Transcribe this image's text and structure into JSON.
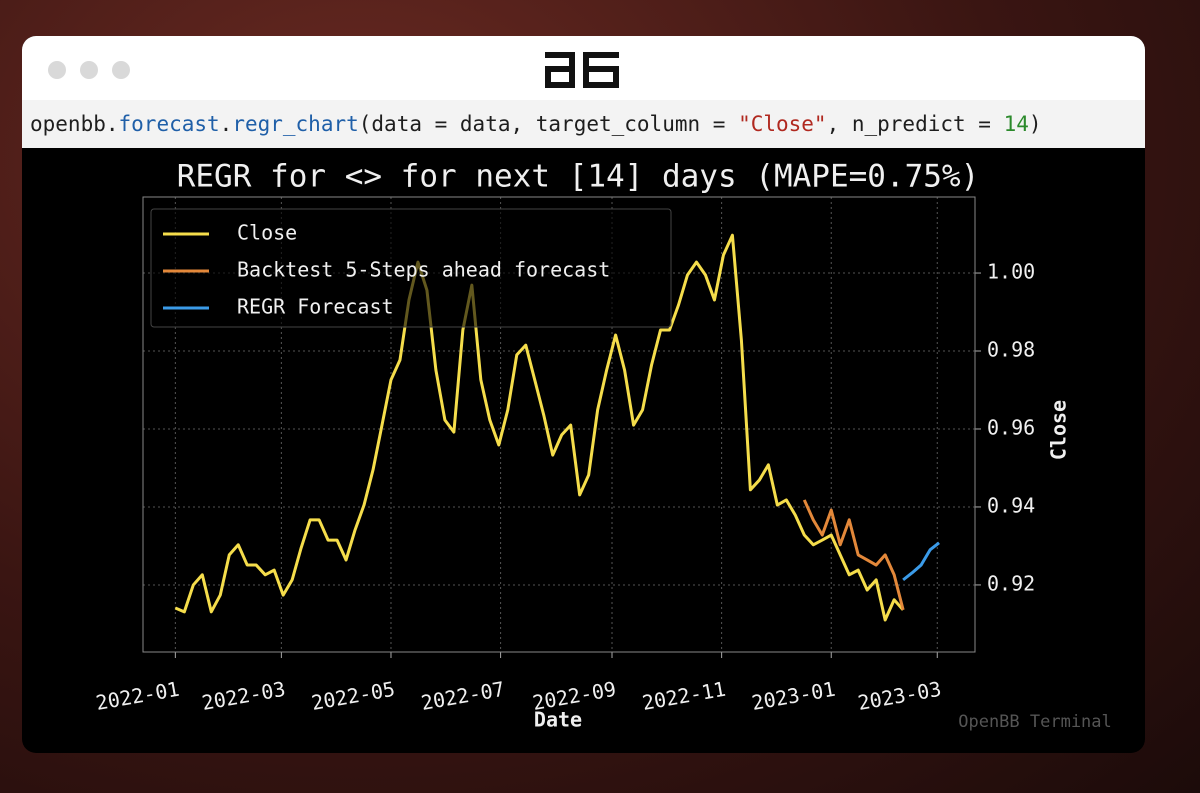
{
  "code": {
    "tokens": [
      {
        "text": "openbb.",
        "color": "#1e1e1e"
      },
      {
        "text": "forecast",
        "color": "#1f5fa8"
      },
      {
        "text": ".",
        "color": "#1e1e1e"
      },
      {
        "text": "regr_chart",
        "color": "#1f5fa8"
      },
      {
        "text": "(data = data, target_column = ",
        "color": "#1e1e1e"
      },
      {
        "text": "\"Close\"",
        "color": "#b0281f"
      },
      {
        "text": ", n_predict = ",
        "color": "#1e1e1e"
      },
      {
        "text": "14",
        "color": "#2c8a2c"
      },
      {
        "text": ")",
        "color": "#1e1e1e"
      }
    ]
  },
  "watermark": "OpenBB Terminal",
  "chart_data": {
    "type": "line",
    "title": "REGR for <> for next [14] days (MAPE=0.75%)",
    "xlabel": "Date",
    "ylabel": "Close",
    "grid": true,
    "legend": "upper left",
    "x": [
      0,
      5,
      10,
      15,
      20,
      25,
      30,
      35,
      40,
      45,
      50,
      55,
      60,
      65,
      70,
      75,
      80,
      85,
      90,
      95,
      100,
      105,
      110,
      115,
      120,
      125,
      130,
      135,
      140,
      145,
      150,
      155,
      160,
      165,
      170,
      175,
      180,
      185,
      190,
      195,
      200,
      205,
      210,
      215,
      220,
      225,
      230,
      235,
      240,
      245,
      250,
      255,
      260,
      265,
      270,
      275,
      280,
      285,
      290,
      295,
      300,
      305,
      310,
      315,
      320,
      325,
      330,
      335,
      340,
      345,
      350,
      355,
      360,
      365,
      370,
      375,
      380,
      385,
      390,
      395,
      400,
      405,
      410,
      415,
      420,
      425
    ],
    "xlim": [
      -18,
      445
    ],
    "xticks": [
      {
        "value": 0,
        "label": "2022-01"
      },
      {
        "value": 59,
        "label": "2022-03"
      },
      {
        "value": 120,
        "label": "2022-05"
      },
      {
        "value": 181,
        "label": "2022-07"
      },
      {
        "value": 243,
        "label": "2022-09"
      },
      {
        "value": 304,
        "label": "2022-11"
      },
      {
        "value": 365,
        "label": "2023-01"
      },
      {
        "value": 424,
        "label": "2023-03"
      }
    ],
    "ylim": [
      0.9028,
      1.0195
    ],
    "yticks": [
      0.92,
      0.94,
      0.96,
      0.98,
      {
        "value": 1,
        "label": "1.00"
      }
    ],
    "series": [
      {
        "name": "Close",
        "color": "#f5dd4b",
        "values": [
          0.9141,
          0.9131,
          0.92,
          0.9226,
          0.9131,
          0.9174,
          0.9277,
          0.9303,
          0.9251,
          0.9251,
          0.9226,
          0.9238,
          0.9174,
          0.9213,
          0.9295,
          0.9367,
          0.9367,
          0.9315,
          0.9315,
          0.9264,
          0.9341,
          0.9405,
          0.9495,
          0.961,
          0.9726,
          0.9777,
          0.9931,
          1.0028,
          0.9956,
          0.9751,
          0.9623,
          0.9592,
          0.9854,
          0.9969,
          0.9726,
          0.9623,
          0.9559,
          0.9649,
          0.979,
          0.9815,
          0.9726,
          0.9636,
          0.9533,
          0.9585,
          0.961,
          0.9431,
          0.9482,
          0.9649,
          0.9751,
          0.9841,
          0.9751,
          0.961,
          0.9649,
          0.9764,
          0.9854,
          0.9854,
          0.9918,
          0.9995,
          1.0028,
          0.9995,
          0.9931,
          1.0046,
          1.0097,
          0.9828,
          0.9444,
          0.9469,
          0.9508,
          0.9405,
          0.9418,
          0.9379,
          0.9328,
          0.9303,
          0.9315,
          0.9328,
          0.9277,
          0.9226,
          0.9238,
          0.9187,
          0.9213,
          0.911,
          0.9162,
          0.9136,
          null,
          null,
          null,
          null
        ]
      },
      {
        "name": "Backtest 5-Steps ahead forecast",
        "color": "#e3883a",
        "values": [
          null,
          null,
          null,
          null,
          null,
          null,
          null,
          null,
          null,
          null,
          null,
          null,
          null,
          null,
          null,
          null,
          null,
          null,
          null,
          null,
          null,
          null,
          null,
          null,
          null,
          null,
          null,
          null,
          null,
          null,
          null,
          null,
          null,
          null,
          null,
          null,
          null,
          null,
          null,
          null,
          null,
          null,
          null,
          null,
          null,
          null,
          null,
          null,
          null,
          null,
          null,
          null,
          null,
          null,
          null,
          null,
          null,
          null,
          null,
          null,
          null,
          null,
          null,
          null,
          null,
          null,
          null,
          null,
          null,
          null,
          0.9418,
          0.9367,
          0.9328,
          0.9392,
          0.9303,
          0.9367,
          0.9277,
          0.9264,
          0.9251,
          0.9277,
          0.9226,
          0.9136,
          null,
          null,
          null,
          null
        ]
      },
      {
        "name": "REGR Forecast",
        "color": "#3b9be8",
        "values": [
          null,
          null,
          null,
          null,
          null,
          null,
          null,
          null,
          null,
          null,
          null,
          null,
          null,
          null,
          null,
          null,
          null,
          null,
          null,
          null,
          null,
          null,
          null,
          null,
          null,
          null,
          null,
          null,
          null,
          null,
          null,
          null,
          null,
          null,
          null,
          null,
          null,
          null,
          null,
          null,
          null,
          null,
          null,
          null,
          null,
          null,
          null,
          null,
          null,
          null,
          null,
          null,
          null,
          null,
          null,
          null,
          null,
          null,
          null,
          null,
          null,
          null,
          null,
          null,
          null,
          null,
          null,
          null,
          null,
          null,
          null,
          null,
          null,
          null,
          null,
          null,
          null,
          null,
          null,
          null,
          null,
          0.9213,
          0.9231,
          0.9251,
          0.929,
          0.9308
        ]
      }
    ]
  }
}
